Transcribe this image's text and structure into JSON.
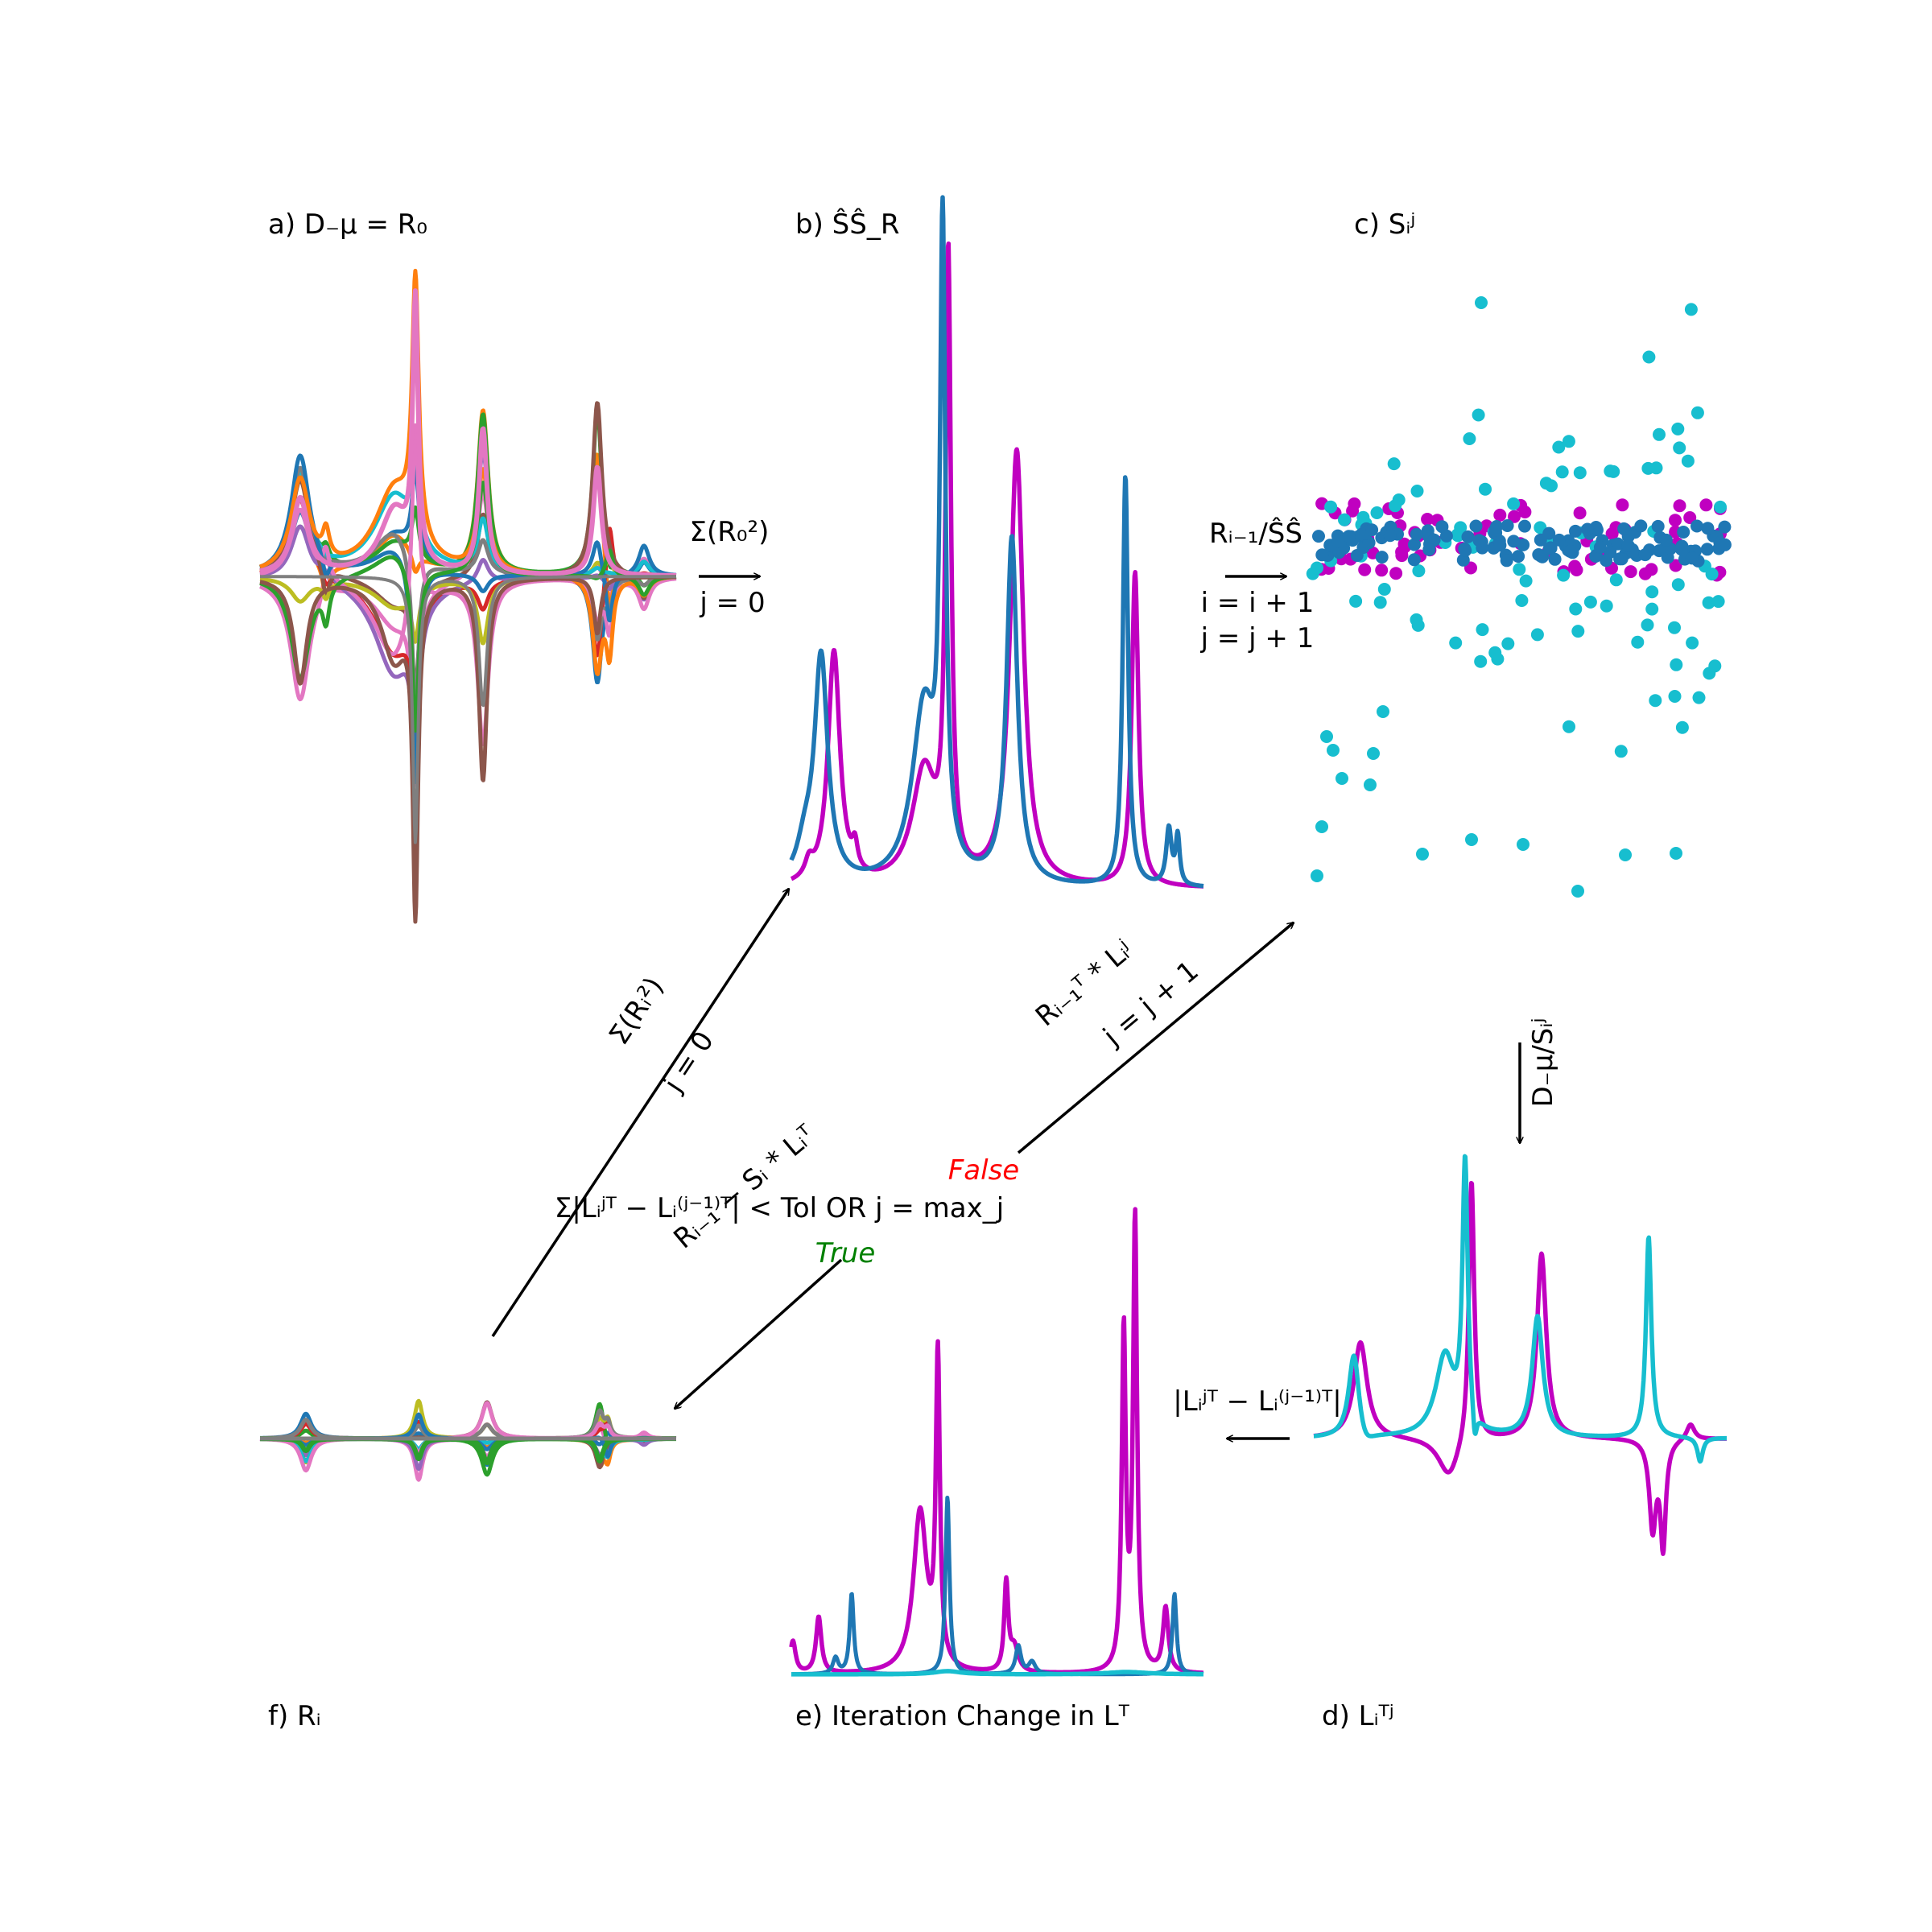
{
  "colors": {
    "magenta": "#c000c0",
    "blue": "#1f77b4",
    "cyan": "#17becf",
    "false_color": "#ff0000",
    "true_color": "#008000",
    "palette": [
      "#e377c2",
      "#1f77b4",
      "#ff7f0e",
      "#2ca02c",
      "#d62728",
      "#9467bd",
      "#8c564b",
      "#bcbd22",
      "#17becf",
      "#7f7f7f"
    ]
  },
  "panels": {
    "a": {
      "label": "a) D₋μ = R₀"
    },
    "b": {
      "label": "b) ŜŜ_R"
    },
    "c": {
      "label": "c) Sᵢʲ"
    },
    "d": {
      "label": "d) Lᵢᵀʲ"
    },
    "e": {
      "label": "e) Iteration Change in Lᵀ"
    },
    "f": {
      "label": "f) Rᵢ"
    }
  },
  "arrows": {
    "a_to_b": {
      "top": "Σ(R₀²)",
      "bottom": "j = 0"
    },
    "b_to_c": {
      "top": "Rᵢ₋₁/ŜŜ",
      "line1": "i = i + 1",
      "line2": "j = j + 1"
    },
    "c_to_d": {
      "side": "D₋μ/Sᵢʲ"
    },
    "d_to_e": {
      "top": "|Lᵢʲᵀ − Lᵢ⁽ʲ⁻¹⁾ᵀ|"
    },
    "f_to_b": {
      "upper": "Σ(Rᵢ²)",
      "lower": "j = 0"
    },
    "decision_to_c": {
      "upper": "Rᵢ₋₁ᵀ * Lᵢʲ",
      "lower": "j = j + 1"
    },
    "decision_to_f": {
      "label": "Rᵢ₋₁ − Sᵢ * Lᵢᵀ"
    }
  },
  "decision": {
    "condition": "Σ|Lᵢʲᵀ − Lᵢ⁽ʲ⁻¹⁾ᵀ| < Tol OR j = max_j",
    "false_label": "False",
    "true_label": "True"
  }
}
